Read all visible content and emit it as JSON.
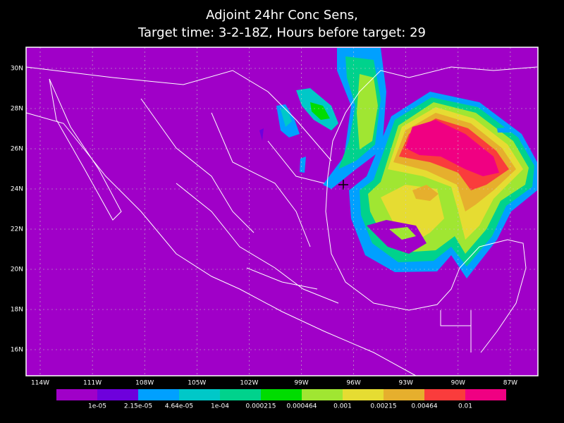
{
  "header": {
    "title_line1": "Adjoint 24hr Conc Sens,",
    "title_line2": "Target time: 3-2-18Z, Hours before target: 29"
  },
  "map": {
    "lat_labels": [
      "30N",
      "28N",
      "26N",
      "24N",
      "22N",
      "20N",
      "18N",
      "16N"
    ],
    "lon_labels": [
      "114W",
      "111W",
      "108W",
      "105W",
      "102W",
      "99W",
      "96W",
      "93W",
      "90W",
      "87W"
    ]
  },
  "colorbar": {
    "colors": [
      "#a000c8",
      "#6e00dc",
      "#00a0ff",
      "#00c8c8",
      "#00d28c",
      "#00dc00",
      "#a0e632",
      "#e6dc32",
      "#e6af2d",
      "#fa3c3c",
      "#f00082"
    ],
    "labels": [
      "1e-05",
      "2.15e-05",
      "4.64e-05",
      "1e-04",
      "0.000215",
      "0.000464",
      "0.001",
      "0.00215",
      "0.00464",
      "0.01"
    ]
  }
}
